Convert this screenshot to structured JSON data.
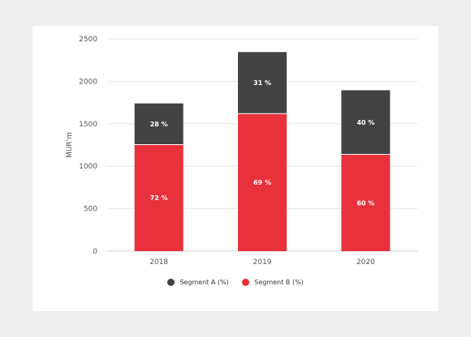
{
  "chart_data": {
    "type": "bar",
    "stacked": true,
    "title": "",
    "xlabel": "",
    "ylabel": "MUR'm",
    "categories": [
      "2018",
      "2019",
      "2020"
    ],
    "ylim": [
      0,
      2500
    ],
    "yticks": [
      0,
      500,
      1000,
      1500,
      2000,
      2500
    ],
    "grid": true,
    "legend_position": "bottom",
    "series": [
      {
        "name": "Segment B (%)",
        "color": "#e8313a",
        "values": [
          1255,
          1620,
          1140
        ],
        "labels": [
          "72 %",
          "69 %",
          "60 %"
        ]
      },
      {
        "name": "Segment A (%)",
        "color": "#424242",
        "values": [
          485,
          725,
          755
        ],
        "labels": [
          "28 %",
          "31 %",
          "40 %"
        ]
      }
    ],
    "legend": [
      {
        "name": "Segment A (%)",
        "color": "#424242"
      },
      {
        "name": "Segment B (%)",
        "color": "#e8313a"
      }
    ]
  }
}
